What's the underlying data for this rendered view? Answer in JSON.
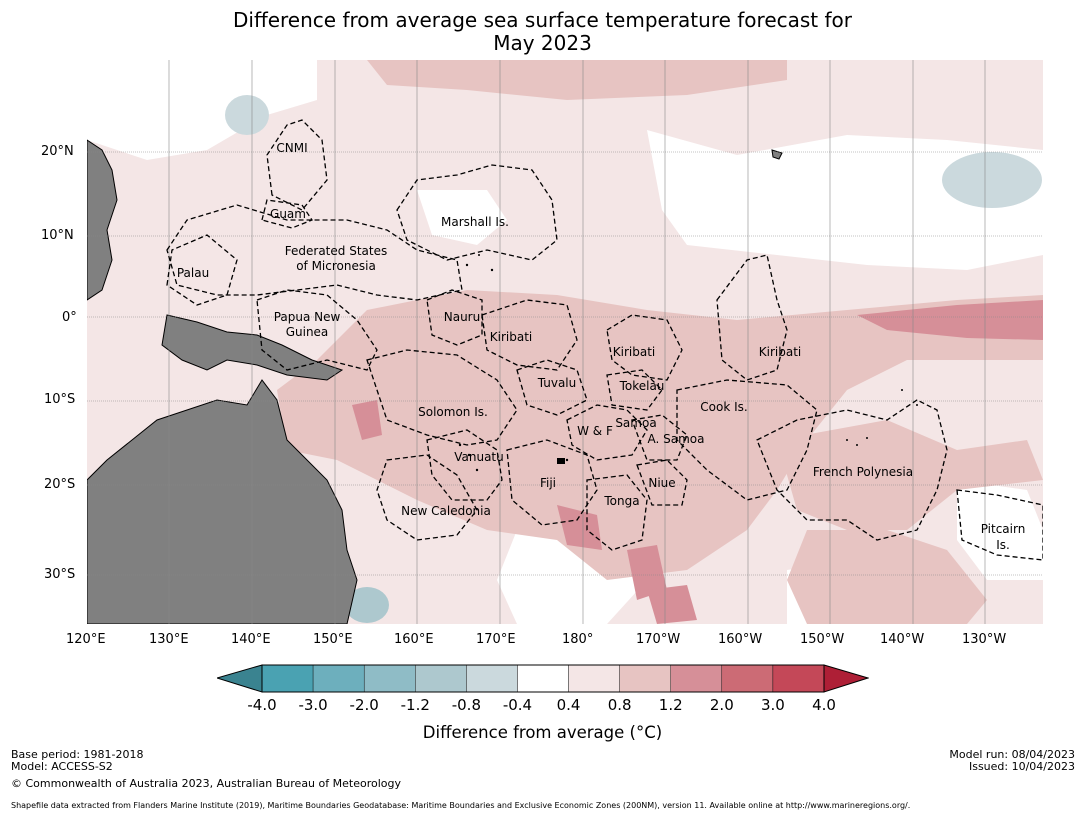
{
  "title_line1": "Difference from average sea surface temperature forecast for",
  "title_line2": "May 2023",
  "lat_labels": [
    "20°N",
    "10°N",
    "0°",
    "10°S",
    "20°S",
    "30°S"
  ],
  "lon_labels": [
    "120°E",
    "130°E",
    "140°E",
    "150°E",
    "160°E",
    "170°E",
    "180°",
    "170°W",
    "160°W",
    "150°W",
    "140°W",
    "130°W"
  ],
  "regions": [
    "CNMI",
    "Guam",
    "Marshall Is.",
    "Federated States",
    "of Micronesia",
    "Palau",
    "Papua New",
    "Guinea",
    "Nauru",
    "Kiribati",
    "Kiribati",
    "Kiribati",
    "Tuvalu",
    "Tokelau",
    "Solomon Is.",
    "Cook Is.",
    "Samoa",
    "W & F",
    "A. Samoa",
    "Vanuatu",
    "Fiji",
    "Niue",
    "Tonga",
    "French Polynesia",
    "New Caledonia",
    "Pitcairn",
    "Is."
  ],
  "colorbar": {
    "ticks": [
      "-4.0",
      "-3.0",
      "-2.0",
      "-1.2",
      "-0.8",
      "-0.4",
      "0.4",
      "0.8",
      "1.2",
      "2.0",
      "3.0",
      "4.0"
    ],
    "colors": [
      "#4aa2b2",
      "#6dafbd",
      "#8fbcc6",
      "#adc8ce",
      "#cbd9dd",
      "#ffffff",
      "#f4e6e6",
      "#e7c4c2",
      "#d68f98",
      "#cc6b75",
      "#c44858",
      "#ae1f36"
    ],
    "low_extend_color": "#3a8390",
    "label": "Difference from average (°C)"
  },
  "footer": {
    "base_period": "Base period: 1981-2018",
    "model": "Model: ACCESS-S2",
    "copyright": "© Commonwealth of Australia 2023, Australian Bureau of Meteorology",
    "model_run": "Model run: 08/04/2023",
    "issued": "Issued: 10/04/2023",
    "shapefile": "Shapefile data extracted from Flanders Marine Institute (2019), Maritime Boundaries Geodatabase: Maritime Boundaries and Exclusive Economic Zones (200NM), version 11. Available online at http://www.marineregions.org/."
  }
}
